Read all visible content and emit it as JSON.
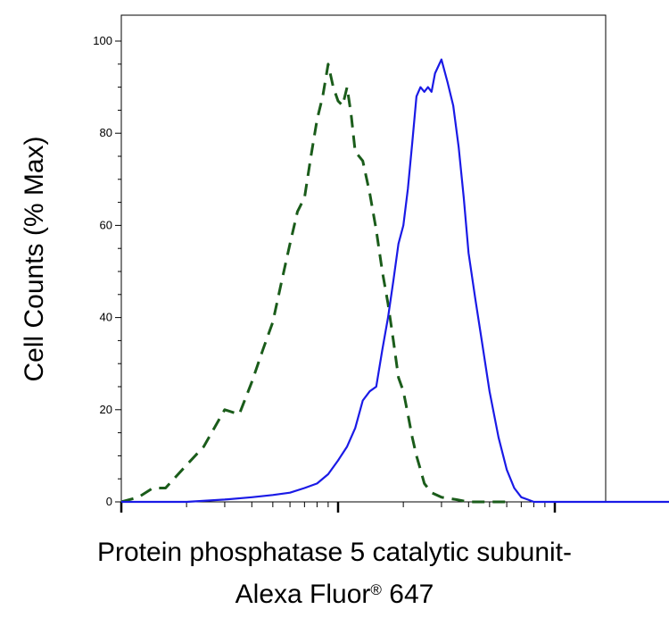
{
  "chart_data": {
    "type": "line",
    "ylabel": "Cell Counts (% Max)",
    "xlabel_line1": "Protein phosphatase 5 catalytic subunit-",
    "xlabel_line2_main": "Alexa Fluor",
    "xlabel_line2_reg": "®",
    "xlabel_line2_tail": " 647",
    "xscale": "log",
    "xlim": [
      1,
      10000
    ],
    "ylim": [
      0,
      100
    ],
    "y_ticks": [
      "0",
      "20",
      "40",
      "60",
      "80",
      "100"
    ],
    "grid": false,
    "legend": "none",
    "series": [
      {
        "color": "#1a5c1a",
        "style": "dashed",
        "x": [
          1,
          1.2,
          1.4,
          1.6,
          2,
          2.4,
          3,
          3.5,
          4,
          4.5,
          5,
          5.5,
          6,
          6.5,
          7,
          7.5,
          8,
          8.5,
          9,
          9.5,
          10,
          10.5,
          11,
          11.5,
          12,
          13,
          14,
          15,
          16,
          17,
          18,
          19,
          20,
          21,
          22,
          23,
          24,
          25,
          27,
          30,
          35,
          40,
          45,
          50,
          55,
          60
        ],
        "y": [
          0,
          1,
          3,
          3,
          8,
          12,
          20,
          19,
          26,
          33,
          39,
          48,
          56,
          63,
          66,
          75,
          83,
          88,
          95,
          90,
          87,
          86,
          90,
          84,
          76,
          74,
          67,
          59,
          50,
          43,
          35,
          27,
          24,
          19,
          14,
          10,
          7,
          4,
          2,
          1,
          0.5,
          0,
          0,
          0,
          0,
          0
        ]
      },
      {
        "color": "#1a1ae6",
        "style": "solid",
        "x": [
          1,
          1.5,
          2,
          3,
          4,
          5,
          6,
          7,
          8,
          9,
          10,
          11,
          12,
          13,
          14,
          15,
          16,
          17,
          18,
          19,
          20,
          21,
          22,
          23,
          24,
          25,
          26,
          27,
          28,
          30,
          32,
          34,
          36,
          38,
          40,
          43,
          46,
          50,
          55,
          60,
          65,
          70,
          75,
          80,
          90,
          100,
          120,
          150,
          200,
          300,
          500,
          1000,
          2000,
          5000,
          10000
        ],
        "y": [
          0,
          0,
          0,
          0.5,
          1,
          1.5,
          2,
          3,
          4,
          6,
          9,
          12,
          16,
          22,
          24,
          25,
          33,
          40,
          48,
          56,
          60,
          68,
          78,
          88,
          90,
          89,
          90,
          89,
          93,
          96,
          91,
          86,
          77,
          66,
          54,
          44,
          35,
          24,
          14,
          7,
          3,
          1,
          0.5,
          0,
          0,
          0,
          0,
          0,
          0,
          0,
          0,
          0,
          0,
          0,
          0
        ]
      }
    ]
  }
}
